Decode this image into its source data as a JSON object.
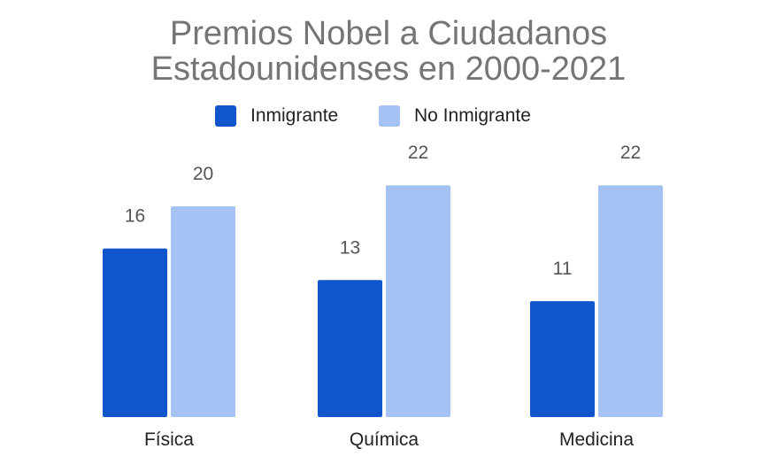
{
  "chart_data": {
    "type": "bar",
    "title_lines": [
      "Premios Nobel a Ciudadanos",
      "Estadounidenses en 2000-2021"
    ],
    "categories": [
      "Física",
      "Química",
      "Medicina"
    ],
    "series": [
      {
        "name": "Inmigrante",
        "values": [
          16,
          13,
          11
        ],
        "color": "#1155cc"
      },
      {
        "name": "No Inmigrante",
        "values": [
          20,
          22,
          22
        ],
        "color": "#a4c2f4"
      }
    ],
    "ylim": [
      0,
      22
    ],
    "legend_position": "top",
    "grid": false
  }
}
